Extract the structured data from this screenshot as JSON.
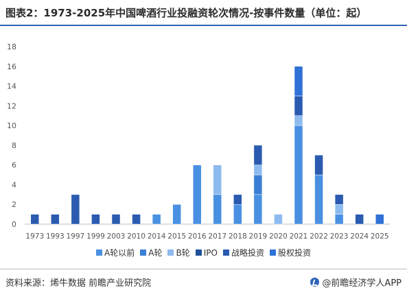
{
  "title": "图表2：1973-2025年中国啤酒行业投融资轮次情况-按事件数量（单位：起）",
  "source": "资料来源：烯牛数据 前瞻产业研究院",
  "brand": "@前瞻经济学人APP",
  "colors": {
    "A轮以前": "#4a90e2",
    "A轮": "#3a7fd5",
    "B轮": "#8dbbef",
    "IPO": "#1f4f9a",
    "战略投资": "#2a5bb0",
    "股权投资": "#2f71d6"
  },
  "chart_data": {
    "type": "bar",
    "stacked": true,
    "categories": [
      "1973",
      "1993",
      "1997",
      "1999",
      "2003",
      "2010",
      "2014",
      "2015",
      "2016",
      "2017",
      "2018",
      "2019",
      "2020",
      "2021",
      "2022",
      "2023",
      "2024",
      "2025"
    ],
    "ylim": [
      0,
      18
    ],
    "yticks": [
      0,
      2,
      4,
      6,
      8,
      10,
      12,
      14,
      16,
      18
    ],
    "grid": false,
    "legend": "bottom",
    "series": [
      {
        "name": "A轮以前",
        "values": [
          0,
          0,
          0,
          0,
          0,
          0,
          1,
          2,
          6,
          3,
          2,
          3,
          0,
          10,
          5,
          1,
          0,
          0
        ]
      },
      {
        "name": "A轮",
        "values": [
          0,
          0,
          0,
          0,
          0,
          0,
          0,
          0,
          0,
          0,
          0,
          2,
          0,
          0,
          0,
          0,
          0,
          0
        ]
      },
      {
        "name": "B轮",
        "values": [
          0,
          0,
          0,
          0,
          0,
          0,
          0,
          0,
          0,
          3,
          0,
          1,
          1,
          1,
          0,
          1,
          0,
          0
        ]
      },
      {
        "name": "IPO",
        "values": [
          0,
          0,
          0,
          0,
          0,
          0,
          0,
          0,
          0,
          0,
          0,
          0,
          0,
          0,
          0,
          0,
          0,
          0
        ]
      },
      {
        "name": "战略投资",
        "values": [
          1,
          1,
          3,
          1,
          1,
          1,
          0,
          0,
          0,
          0,
          1,
          2,
          0,
          2,
          2,
          1,
          1,
          0
        ]
      },
      {
        "name": "股权投资",
        "values": [
          0,
          0,
          0,
          0,
          0,
          0,
          0,
          0,
          0,
          0,
          0,
          0,
          0,
          3,
          0,
          0,
          0,
          1
        ]
      }
    ]
  }
}
